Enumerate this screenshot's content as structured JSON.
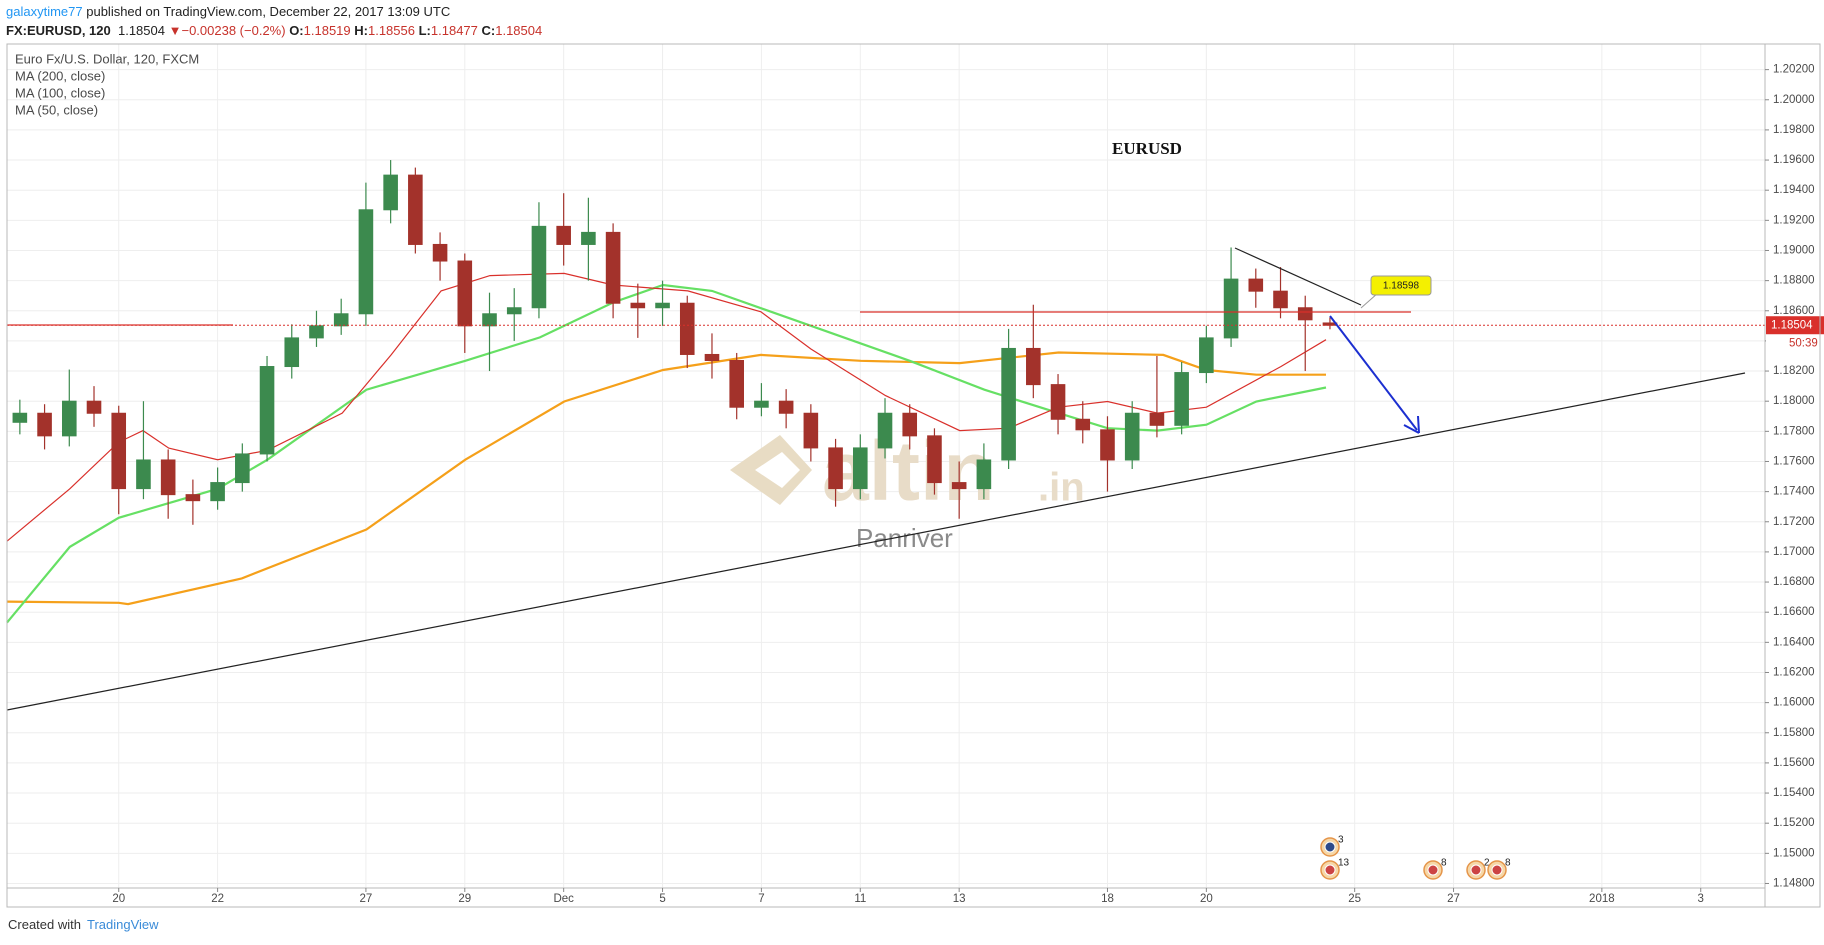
{
  "header": {
    "user": "galaxytime77",
    "published": "published on TradingView.com, December 22, 2017 13:09 UTC",
    "symbol": "FX:EURUSD, 120",
    "last": "1.18504",
    "arrow": "▼",
    "change": "−0.00238 (−0.2%)",
    "o_label": "O:",
    "o": "1.18519",
    "h_label": "H:",
    "h": "1.18556",
    "l_label": "L:",
    "l": "1.18477",
    "c_label": "C:",
    "c": "1.18504"
  },
  "footer": {
    "created": "Created with",
    "brand": "TradingView"
  },
  "chart_data": {
    "type": "candlestick",
    "title": "Euro Fx/U.S. Dollar, 120, FXCM",
    "annotation": "EURUSD",
    "callout": "1.18598",
    "watermark": {
      "brand": "altin",
      "suffix": ".in",
      "author": "Panriver"
    },
    "countdown": "50:39",
    "last_price": 1.18504,
    "grid": true,
    "up_color": "#3c8a4e",
    "down_color": "#a3322b",
    "xlim": [
      -2.26,
      33.3
    ],
    "ylim": [
      1.1477,
      1.2037
    ],
    "xticks": [
      {
        "value": 0,
        "label": "20"
      },
      {
        "value": 2,
        "label": "22"
      },
      {
        "value": 5,
        "label": "27"
      },
      {
        "value": 7,
        "label": "29"
      },
      {
        "value": 9,
        "label": "Dec"
      },
      {
        "value": 11,
        "label": "5"
      },
      {
        "value": 13,
        "label": "7"
      },
      {
        "value": 15,
        "label": "11"
      },
      {
        "value": 17,
        "label": "13"
      },
      {
        "value": 20,
        "label": "18"
      },
      {
        "value": 22,
        "label": "20"
      },
      {
        "value": 25,
        "label": "25"
      },
      {
        "value": 27,
        "label": "27"
      },
      {
        "value": 30,
        "label": "2018"
      },
      {
        "value": 32,
        "label": "3"
      }
    ],
    "yticks": [
      {
        "value": 1.148,
        "label": "1.14800"
      },
      {
        "value": 1.15,
        "label": "1.15000"
      },
      {
        "value": 1.152,
        "label": "1.15200"
      },
      {
        "value": 1.154,
        "label": "1.15400"
      },
      {
        "value": 1.156,
        "label": "1.15600"
      },
      {
        "value": 1.158,
        "label": "1.15800"
      },
      {
        "value": 1.16,
        "label": "1.16000"
      },
      {
        "value": 1.162,
        "label": "1.16200"
      },
      {
        "value": 1.164,
        "label": "1.16400"
      },
      {
        "value": 1.166,
        "label": "1.16600"
      },
      {
        "value": 1.168,
        "label": "1.16800"
      },
      {
        "value": 1.17,
        "label": "1.17000"
      },
      {
        "value": 1.172,
        "label": "1.17200"
      },
      {
        "value": 1.174,
        "label": "1.17400"
      },
      {
        "value": 1.176,
        "label": "1.17600"
      },
      {
        "value": 1.178,
        "label": "1.17800"
      },
      {
        "value": 1.18,
        "label": "1.18000"
      },
      {
        "value": 1.182,
        "label": "1.18200"
      },
      {
        "value": 1.184,
        "label": "1.18400"
      },
      {
        "value": 1.186,
        "label": "1.18600"
      },
      {
        "value": 1.188,
        "label": "1.18800"
      },
      {
        "value": 1.19,
        "label": "1.19000"
      },
      {
        "value": 1.192,
        "label": "1.19200"
      },
      {
        "value": 1.194,
        "label": "1.19400"
      },
      {
        "value": 1.196,
        "label": "1.19600"
      },
      {
        "value": 1.198,
        "label": "1.19800"
      },
      {
        "value": 1.2,
        "label": "1.20000"
      },
      {
        "value": 1.202,
        "label": "1.20200"
      }
    ],
    "x": [
      -2,
      -1.5,
      -1,
      -0.5,
      0,
      0.5,
      1,
      1.5,
      2,
      2.5,
      3,
      3.5,
      4,
      4.5,
      5,
      5.5,
      6,
      6.5,
      7,
      7.5,
      8,
      8.5,
      9,
      9.5,
      10,
      10.5,
      11,
      11.5,
      12,
      12.5,
      13,
      13.5,
      14,
      14.5,
      15,
      15.5,
      16,
      16.5,
      17,
      17.5,
      18,
      18.5,
      19,
      19.5,
      20,
      20.5,
      21,
      21.5,
      22,
      22.5,
      23,
      23.5,
      24,
      24.5
    ],
    "open": [
      1.1786,
      1.1792,
      1.1777,
      1.18,
      1.1792,
      1.1742,
      1.1761,
      1.1738,
      1.1734,
      1.1746,
      1.1765,
      1.1823,
      1.1842,
      1.185,
      1.1858,
      1.1927,
      1.195,
      1.1904,
      1.1893,
      1.185,
      1.1858,
      1.1862,
      1.1916,
      1.1904,
      1.1912,
      1.1865,
      1.1862,
      1.1865,
      1.1831,
      1.1827,
      1.1796,
      1.18,
      1.1792,
      1.1769,
      1.1742,
      1.1769,
      1.1792,
      1.1777,
      1.1746,
      1.1742,
      1.1761,
      1.1835,
      1.1811,
      1.1788,
      1.1781,
      1.1761,
      1.1792,
      1.1784,
      1.1819,
      1.1842,
      1.1881,
      1.1873,
      1.1862,
      1.18519
    ],
    "high": [
      1.1801,
      1.1798,
      1.1821,
      1.181,
      1.1797,
      1.18,
      1.1768,
      1.1748,
      1.1756,
      1.1772,
      1.183,
      1.1851,
      1.186,
      1.1868,
      1.1945,
      1.196,
      1.1955,
      1.1912,
      1.1898,
      1.1872,
      1.1875,
      1.1932,
      1.1938,
      1.1935,
      1.1918,
      1.1878,
      1.188,
      1.187,
      1.1845,
      1.1832,
      1.1812,
      1.1808,
      1.1798,
      1.1775,
      1.1778,
      1.1802,
      1.1798,
      1.1782,
      1.176,
      1.1772,
      1.1848,
      1.1864,
      1.1818,
      1.18,
      1.179,
      1.18,
      1.183,
      1.1826,
      1.185,
      1.1902,
      1.1888,
      1.1889,
      1.187,
      1.18556
    ],
    "low": [
      1.1778,
      1.1768,
      1.177,
      1.1783,
      1.1725,
      1.1735,
      1.1722,
      1.1718,
      1.1728,
      1.174,
      1.176,
      1.1815,
      1.1836,
      1.1844,
      1.185,
      1.1918,
      1.1898,
      1.188,
      1.1832,
      1.182,
      1.184,
      1.1855,
      1.189,
      1.188,
      1.1855,
      1.1842,
      1.185,
      1.1822,
      1.1815,
      1.1788,
      1.179,
      1.1782,
      1.176,
      1.173,
      1.1735,
      1.1762,
      1.1768,
      1.1738,
      1.1722,
      1.1735,
      1.1755,
      1.1802,
      1.1778,
      1.1772,
      1.174,
      1.1755,
      1.1776,
      1.1778,
      1.1812,
      1.1836,
      1.1862,
      1.1855,
      1.182,
      1.18477
    ],
    "close": [
      1.1792,
      1.1777,
      1.18,
      1.1792,
      1.1742,
      1.1761,
      1.1738,
      1.1734,
      1.1746,
      1.1765,
      1.1823,
      1.1842,
      1.185,
      1.1858,
      1.1927,
      1.195,
      1.1904,
      1.1893,
      1.185,
      1.1858,
      1.1862,
      1.1916,
      1.1904,
      1.1912,
      1.1865,
      1.1862,
      1.1865,
      1.1831,
      1.1827,
      1.1796,
      1.18,
      1.1792,
      1.1769,
      1.1742,
      1.1769,
      1.1792,
      1.1777,
      1.1746,
      1.1742,
      1.1761,
      1.1835,
      1.1811,
      1.1788,
      1.1781,
      1.1761,
      1.1792,
      1.1784,
      1.1819,
      1.1842,
      1.1881,
      1.1873,
      1.1862,
      1.1854,
      1.18504
    ],
    "series": [
      {
        "name": "MA (200, close)",
        "type": "line",
        "color": "#f5a01a",
        "x": [
          -2.26,
          0,
          0.19,
          2.49,
          5.01,
          7.01,
          9.01,
          11.01,
          12.99,
          15.01,
          17.01,
          19.01,
          21.13,
          22,
          23.01,
          24.42
        ],
        "values": [
          1.1667,
          1.16662,
          1.16654,
          1.16824,
          1.17149,
          1.17612,
          1.17998,
          1.18207,
          1.18307,
          1.18268,
          1.18253,
          1.18323,
          1.18307,
          1.18207,
          1.18176,
          1.18176
        ]
      },
      {
        "name": "MA (100, close)",
        "type": "line",
        "color": "#66e064",
        "x": [
          -2.26,
          -0.99,
          0,
          2,
          3.01,
          5.01,
          7.01,
          8.52,
          10,
          11.01,
          12,
          14,
          16,
          17.51,
          19.01,
          20,
          21.01,
          22,
          23.01,
          24.42
        ],
        "values": [
          1.16531,
          1.17033,
          1.17226,
          1.17419,
          1.17612,
          1.18076,
          1.18268,
          1.18423,
          1.18655,
          1.18771,
          1.18732,
          1.185,
          1.18268,
          1.18076,
          1.17921,
          1.17821,
          1.17805,
          1.17844,
          1.17998,
          1.18091
        ]
      },
      {
        "name": "MA (50, close)",
        "type": "line",
        "color": "#d9302b",
        "x": [
          -2.26,
          -0.99,
          0,
          0.49,
          1.01,
          2,
          3.01,
          4.52,
          5.51,
          6.52,
          7.51,
          9.01,
          10,
          11.51,
          12.99,
          14,
          15.51,
          17.01,
          18,
          19.01,
          20,
          21.01,
          22,
          23.51,
          24.42
        ],
        "values": [
          1.17071,
          1.17419,
          1.17728,
          1.17805,
          1.17689,
          1.17612,
          1.17674,
          1.17921,
          1.18307,
          1.18732,
          1.18833,
          1.18848,
          1.18771,
          1.18732,
          1.18593,
          1.18346,
          1.18037,
          1.17805,
          1.17821,
          1.1796,
          1.17998,
          1.17921,
          1.1796,
          1.1823,
          1.18408
        ]
      }
    ],
    "events": [
      {
        "label": "3"
      },
      {
        "label": "13"
      },
      {
        "label": "8"
      },
      {
        "label": "2"
      },
      {
        "label": "8"
      }
    ]
  }
}
